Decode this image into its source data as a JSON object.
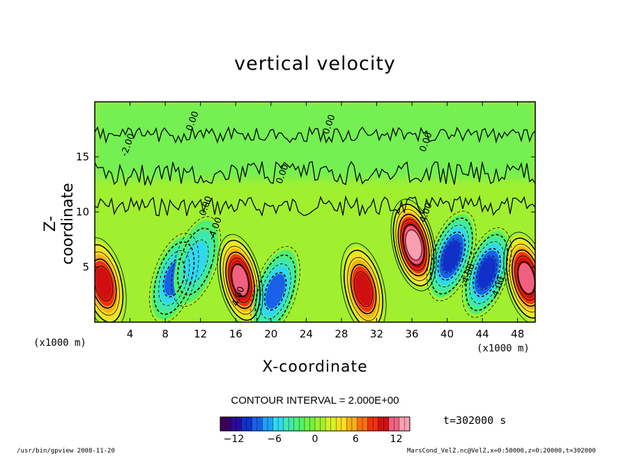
{
  "chart_data": {
    "type": "heatmap",
    "title": "vertical velocity",
    "xlabel": "X-coordinate",
    "ylabel": "Z-coordinate",
    "x_unit_left": "(x1000 m)",
    "x_unit_right": "(x1000 m)",
    "xlim": [
      0,
      50
    ],
    "ylim": [
      0,
      20
    ],
    "x_ticks": [
      4,
      8,
      12,
      16,
      20,
      24,
      28,
      32,
      36,
      40,
      44,
      48
    ],
    "y_ticks": [
      5,
      10,
      15
    ],
    "contour_interval_text": "CONTOUR INTERVAL = 2.000E+00",
    "contour_labels": [
      {
        "text": "0.00",
        "x": 12.5,
        "y": 9.6
      },
      {
        "text": "0.00",
        "x": 21.2,
        "y": 12.5
      },
      {
        "text": "0.00",
        "x": 26.5,
        "y": 17.0
      },
      {
        "text": "0.00",
        "x": 37.5,
        "y": 15.4
      },
      {
        "text": "0.00",
        "x": 11.0,
        "y": 17.3
      },
      {
        "text": "4.00",
        "x": 16.2,
        "y": 1.4
      },
      {
        "text": "4.00",
        "x": 37.5,
        "y": 9.0
      },
      {
        "text": "-4.00",
        "x": 42.2,
        "y": 3.2
      },
      {
        "text": "-4.00",
        "x": 45.6,
        "y": 2.0
      },
      {
        "text": "-4.00",
        "x": 13.5,
        "y": 7.4
      },
      {
        "text": "-2.00",
        "x": 3.6,
        "y": 15.0
      }
    ],
    "features": [
      {
        "x": 1.0,
        "y": 3.5,
        "value": 10
      },
      {
        "x": 9.0,
        "y": 4.0,
        "value": -8
      },
      {
        "x": 11.5,
        "y": 5.5,
        "value": -6
      },
      {
        "x": 16.5,
        "y": 3.8,
        "value": 12
      },
      {
        "x": 20.5,
        "y": 2.8,
        "value": -8
      },
      {
        "x": 30.5,
        "y": 3.0,
        "value": 10
      },
      {
        "x": 36.2,
        "y": 7.0,
        "value": 14
      },
      {
        "x": 40.5,
        "y": 6.0,
        "value": -10
      },
      {
        "x": 44.5,
        "y": 4.5,
        "value": -10
      },
      {
        "x": 49.0,
        "y": 4.0,
        "value": 12
      }
    ],
    "colorbar": {
      "min": -14,
      "max": 14,
      "ticks": [
        -12,
        -6,
        0,
        6,
        12
      ],
      "colors": [
        "#3a005a",
        "#2a0a9a",
        "#1030c8",
        "#1a60e8",
        "#20a0f8",
        "#30d8f0",
        "#40e8b0",
        "#50f070",
        "#70f040",
        "#a0f030",
        "#d8f028",
        "#f8e020",
        "#f8b018",
        "#f87010",
        "#f03010",
        "#d01010",
        "#f06080",
        "#f8a0b0"
      ]
    },
    "time_label": "t=302000 s",
    "footer_left": "/usr/bin/gpview  2008-11-20",
    "footer_right": "MarsCond_VelZ.nc@VelZ,x=0:50000,z=0:20000,t=302000"
  }
}
